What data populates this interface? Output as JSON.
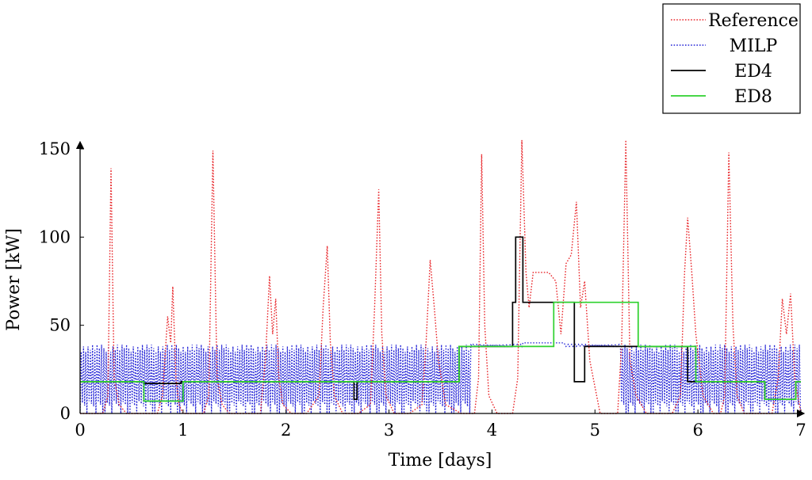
{
  "chart_data": {
    "type": "line",
    "xlabel": "Time [days]",
    "ylabel": "Power [kW]",
    "xlim": [
      0,
      7
    ],
    "ylim": [
      0,
      155
    ],
    "x_ticks": [
      0,
      1,
      2,
      3,
      4,
      5,
      6,
      7
    ],
    "y_ticks": [
      0,
      50,
      100,
      150
    ],
    "grid": false,
    "legend_position": "top-right, outside plot",
    "series": [
      {
        "name": "Reference",
        "color": "#e8262a",
        "style": "dotted",
        "x": [
          0,
          0.22,
          0.27,
          0.3,
          0.33,
          0.38,
          0.45,
          0.6,
          0.75,
          0.8,
          0.85,
          0.88,
          0.9,
          0.93,
          0.96,
          1.0,
          1.1,
          1.2,
          1.25,
          1.29,
          1.33,
          1.38,
          1.45,
          1.6,
          1.75,
          1.8,
          1.84,
          1.87,
          1.9,
          1.93,
          1.97,
          2.05,
          2.2,
          2.32,
          2.36,
          2.4,
          2.43,
          2.47,
          2.55,
          2.7,
          2.82,
          2.86,
          2.9,
          2.93,
          2.97,
          3.05,
          3.2,
          3.32,
          3.36,
          3.4,
          3.44,
          3.48,
          3.55,
          3.7,
          3.83,
          3.87,
          3.9,
          3.93,
          3.97,
          4.05,
          4.2,
          4.25,
          4.29,
          4.33,
          4.36,
          4.4,
          4.45,
          4.55,
          4.62,
          4.67,
          4.72,
          4.77,
          4.82,
          4.86,
          4.9,
          4.95,
          5.05,
          5.15,
          5.22,
          5.26,
          5.3,
          5.34,
          5.4,
          5.5,
          5.6,
          5.75,
          5.83,
          5.87,
          5.9,
          5.94,
          5.98,
          6.05,
          6.15,
          6.22,
          6.26,
          6.3,
          6.34,
          6.38,
          6.45,
          6.6,
          6.72,
          6.78,
          6.82,
          6.86,
          6.9,
          6.94,
          7.0
        ],
        "y": [
          0,
          0,
          10,
          139,
          20,
          5,
          0,
          0,
          0,
          10,
          55,
          40,
          72,
          20,
          5,
          0,
          0,
          0,
          10,
          149,
          20,
          5,
          0,
          0,
          0,
          30,
          78,
          45,
          65,
          20,
          5,
          0,
          0,
          10,
          60,
          95,
          40,
          10,
          0,
          0,
          5,
          60,
          127,
          45,
          10,
          0,
          0,
          5,
          40,
          87,
          60,
          30,
          5,
          0,
          0,
          20,
          147,
          50,
          10,
          0,
          0,
          20,
          155,
          80,
          60,
          80,
          80,
          80,
          75,
          45,
          85,
          90,
          120,
          60,
          75,
          30,
          0,
          0,
          0,
          40,
          155,
          30,
          10,
          0,
          0,
          0,
          10,
          80,
          111,
          80,
          45,
          10,
          0,
          0,
          10,
          148,
          50,
          10,
          0,
          0,
          0,
          20,
          65,
          45,
          68,
          20,
          0
        ]
      },
      {
        "name": "MILP",
        "color": "#2222d6",
        "style": "dotted",
        "pattern": "rapid switching between 0 and about 39 kW up to day 3.8, flat near 38-40 kW from day 3.8 to 5.25, rapid switching between 0 and about 39 kW from day 5.25 to 7",
        "x": [
          0,
          3.8,
          4.3,
          4.7,
          5.25,
          7.0
        ],
        "y": [
          39,
          39,
          39,
          40,
          39,
          39
        ]
      },
      {
        "name": "ED4",
        "color": "#000000",
        "style": "solid",
        "x": [
          0,
          0.02,
          0.02,
          0.62,
          0.62,
          0.98,
          0.98,
          2.66,
          2.66,
          2.69,
          2.69,
          3.68,
          3.68,
          4.2,
          4.2,
          4.23,
          4.23,
          4.3,
          4.3,
          4.33,
          4.33,
          4.6,
          4.6,
          4.8,
          4.8,
          4.9,
          4.9,
          5.9,
          5.9,
          6.65,
          6.65,
          6.8,
          6.8,
          6.95,
          6.95,
          7.0
        ],
        "y": [
          18,
          18,
          18,
          18,
          17,
          17,
          18,
          18,
          8,
          8,
          18,
          18,
          38,
          38,
          63,
          63,
          100,
          100,
          63,
          63,
          63,
          63,
          63,
          63,
          18,
          18,
          38,
          38,
          18,
          18,
          8,
          8,
          8,
          8,
          18,
          18
        ]
      },
      {
        "name": "ED8",
        "color": "#2ed12e",
        "style": "solid",
        "x": [
          0,
          0.62,
          0.62,
          1.0,
          1.0,
          3.68,
          3.68,
          4.6,
          4.6,
          5.42,
          5.42,
          5.98,
          5.98,
          6.65,
          6.65,
          6.95,
          6.95,
          7.0
        ],
        "y": [
          18,
          18,
          7,
          7,
          18,
          18,
          38,
          38,
          63,
          63,
          38,
          38,
          18,
          18,
          8,
          8,
          18,
          18
        ]
      }
    ]
  }
}
